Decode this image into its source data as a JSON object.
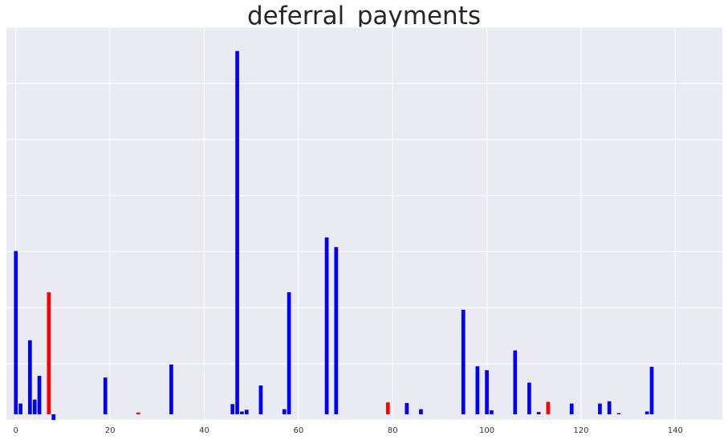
{
  "chart_data": {
    "type": "bar",
    "title": "deferral_payments",
    "xlabel": "",
    "ylabel": "",
    "grid": true,
    "xlim": [
      -2,
      150
    ],
    "ylim": [
      -100000,
      6850000
    ],
    "x_ticks": [
      0,
      20,
      40,
      60,
      80,
      100,
      120,
      140
    ],
    "y_tick_count": 7,
    "colors": {
      "normal": "#0000ff",
      "highlight": "#ff0000",
      "background": "#eaeaf2",
      "grid": "#ffffff"
    },
    "series": [
      {
        "color": "#0000ff",
        "points": [
          {
            "x": 0,
            "y": 2890000
          },
          {
            "x": 1,
            "y": 190000
          },
          {
            "x": 3,
            "y": 1310000
          },
          {
            "x": 4,
            "y": 260000
          },
          {
            "x": 5,
            "y": 680000
          },
          {
            "x": 8,
            "y": -100000
          },
          {
            "x": 19,
            "y": 650000
          },
          {
            "x": 33,
            "y": 880000
          },
          {
            "x": 46,
            "y": 180000
          },
          {
            "x": 47,
            "y": 6430000
          },
          {
            "x": 48,
            "y": 50000
          },
          {
            "x": 49,
            "y": 80000
          },
          {
            "x": 52,
            "y": 510000
          },
          {
            "x": 57,
            "y": 90000
          },
          {
            "x": 58,
            "y": 2160000
          },
          {
            "x": 66,
            "y": 3130000
          },
          {
            "x": 68,
            "y": 2960000
          },
          {
            "x": 83,
            "y": 200000
          },
          {
            "x": 86,
            "y": 90000
          },
          {
            "x": 95,
            "y": 1850000
          },
          {
            "x": 98,
            "y": 850000
          },
          {
            "x": 100,
            "y": 780000
          },
          {
            "x": 101,
            "y": 70000
          },
          {
            "x": 106,
            "y": 1130000
          },
          {
            "x": 109,
            "y": 560000
          },
          {
            "x": 111,
            "y": 40000
          },
          {
            "x": 118,
            "y": 190000
          },
          {
            "x": 124,
            "y": 190000
          },
          {
            "x": 126,
            "y": 230000
          },
          {
            "x": 128,
            "y": 20000
          },
          {
            "x": 134,
            "y": 50000
          },
          {
            "x": 135,
            "y": 840000
          }
        ]
      },
      {
        "color": "#ff0000",
        "points": [
          {
            "x": 7,
            "y": 2160000
          },
          {
            "x": 26,
            "y": 30000
          },
          {
            "x": 79,
            "y": 210000
          },
          {
            "x": 113,
            "y": 220000
          }
        ]
      }
    ]
  }
}
